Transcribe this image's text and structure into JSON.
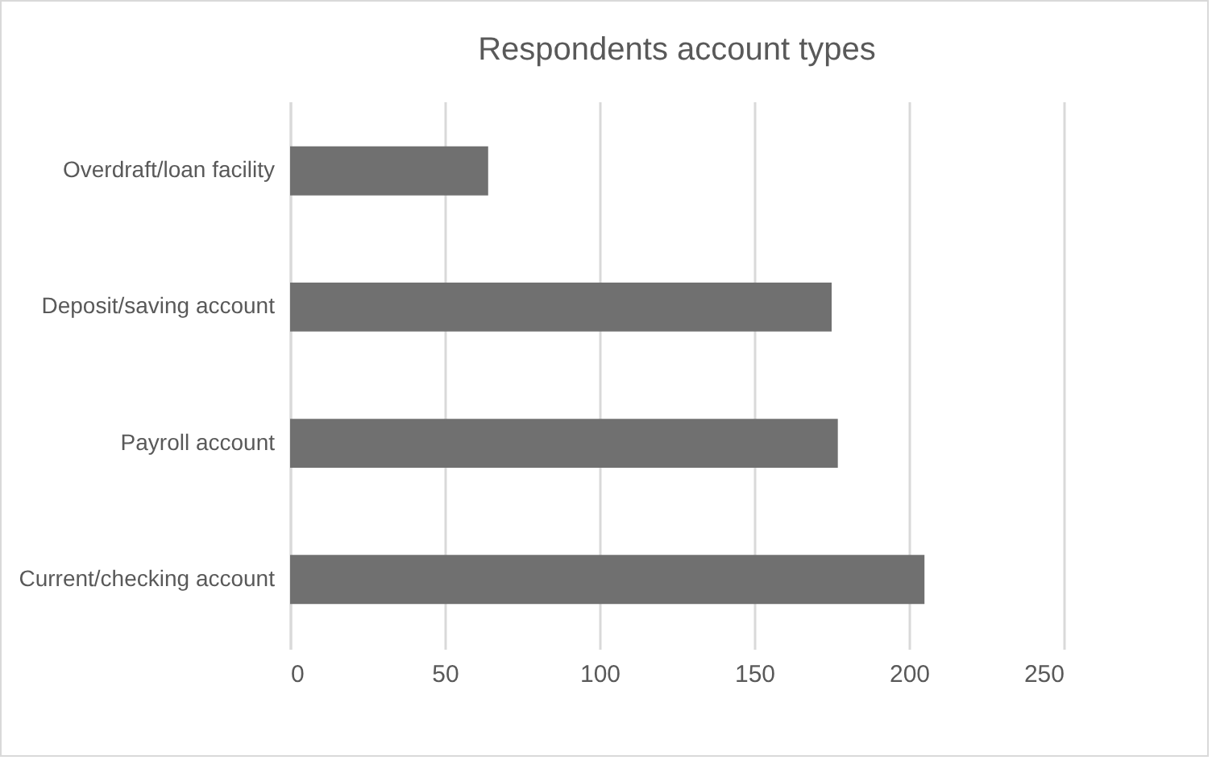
{
  "chart_data": {
    "type": "bar",
    "orientation": "horizontal",
    "title": "Respondents account types",
    "categories": [
      "Overdraft/loan facility",
      "Deposit/saving account",
      "Payroll account",
      "Current/checking account"
    ],
    "values": [
      64,
      175,
      177,
      205
    ],
    "color": "#707070",
    "xlim": [
      0,
      250
    ],
    "xticks": [
      0,
      50,
      100,
      150,
      200,
      250
    ],
    "grid": "x"
  }
}
